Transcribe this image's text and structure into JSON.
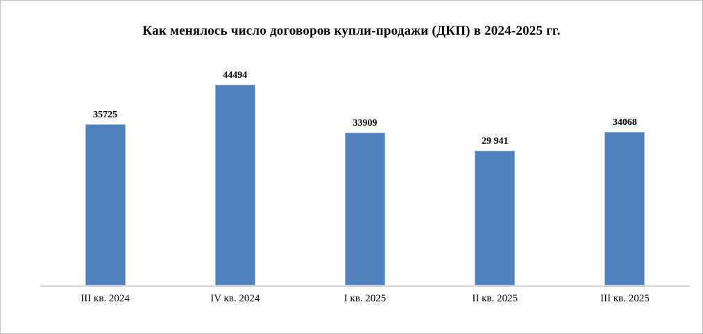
{
  "frame": {
    "background": "#ffffff",
    "border_color": "#c4c4c4"
  },
  "chart_data": {
    "type": "bar",
    "title": "Как менялось число договоров купли-продажи (ДКП) в 2024-2025 гг.",
    "categories": [
      "III кв. 2024",
      "IV кв. 2024",
      "I кв. 2025",
      "II кв. 2025",
      "III кв. 2025"
    ],
    "values": [
      35725,
      44494,
      33909,
      29941,
      34068
    ],
    "value_labels": [
      "35725",
      "44494",
      "33909",
      "29 941",
      "34068"
    ],
    "xlabel": "",
    "ylabel": "",
    "ylim": [
      0,
      45000
    ],
    "grid": false,
    "legend": false,
    "bar_color": "#4f81bd",
    "bar_border_color": "#95b3d7",
    "axis_line_color": "#d9d9d9",
    "text_color": "#000000"
  }
}
